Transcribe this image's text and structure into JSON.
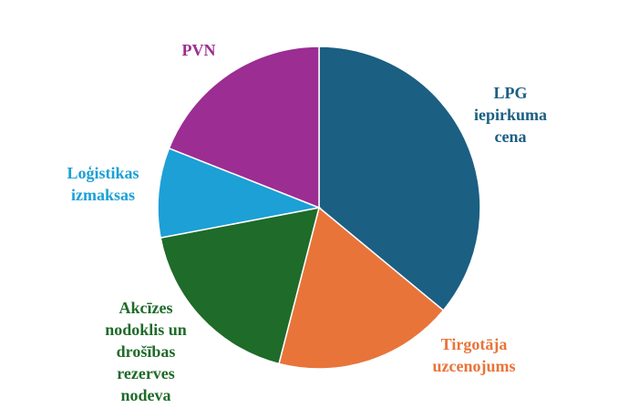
{
  "chart_data": {
    "type": "pie",
    "categories": [
      "LPG\niepirkuma\ncena",
      "Tirgotāja\nuzcenojums",
      "Akcīzes\nnodoklis un\ndrošības\nrezerves\nnodeva",
      "Loģistikas\nizmaksas",
      "PVN"
    ],
    "values": [
      36,
      18,
      18,
      9,
      19
    ],
    "colors": [
      "#1b5f82",
      "#e8743a",
      "#1f6b2a",
      "#1ca0d6",
      "#9c2d92"
    ]
  }
}
